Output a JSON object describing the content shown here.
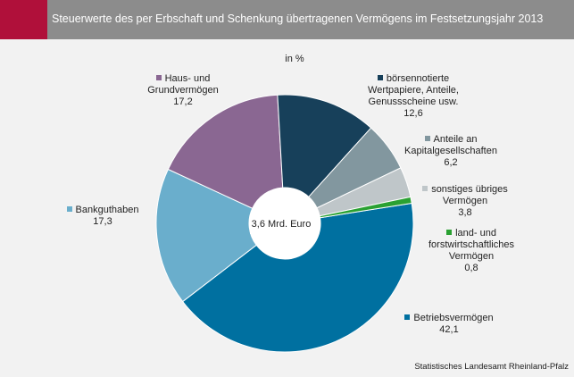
{
  "header": {
    "title": "Steuerwerte des per Erbschaft und Schenkung übertragenen Vermögens im Festsetzungsjahr 2013"
  },
  "chart_data": {
    "type": "pie",
    "variant": "donut",
    "unit_label": "in %",
    "center_label": "3,6 Mrd. Euro",
    "legend_placement": "labels next to slices",
    "slices": [
      {
        "label": "Betriebsvermögen",
        "value": 42.1,
        "value_label": "42,1",
        "color": "#0070a0"
      },
      {
        "label": "Bankguthaben",
        "value": 17.3,
        "value_label": "17,3",
        "color": "#6aaecc"
      },
      {
        "label": "Haus- und Grundvermögen",
        "value": 17.2,
        "value_label": "17,2",
        "color": "#8a6792"
      },
      {
        "label": "börsennotierte Wertpapiere, Anteile, Genussscheine usw.",
        "value": 12.6,
        "value_label": "12,6",
        "color": "#17405a"
      },
      {
        "label": "Anteile an Kapitalgesellschaften",
        "value": 6.2,
        "value_label": "6,2",
        "color": "#82979f"
      },
      {
        "label": "sonstiges übriges Vermögen",
        "value": 3.8,
        "value_label": "3,8",
        "color": "#bfc6c9"
      },
      {
        "label": "land- und forstwirtschaftliches Vermögen",
        "value": 0.8,
        "value_label": "0,8",
        "color": "#2aa132"
      }
    ]
  },
  "source": "Statistisches Landesamt Rheinland-Pfalz"
}
